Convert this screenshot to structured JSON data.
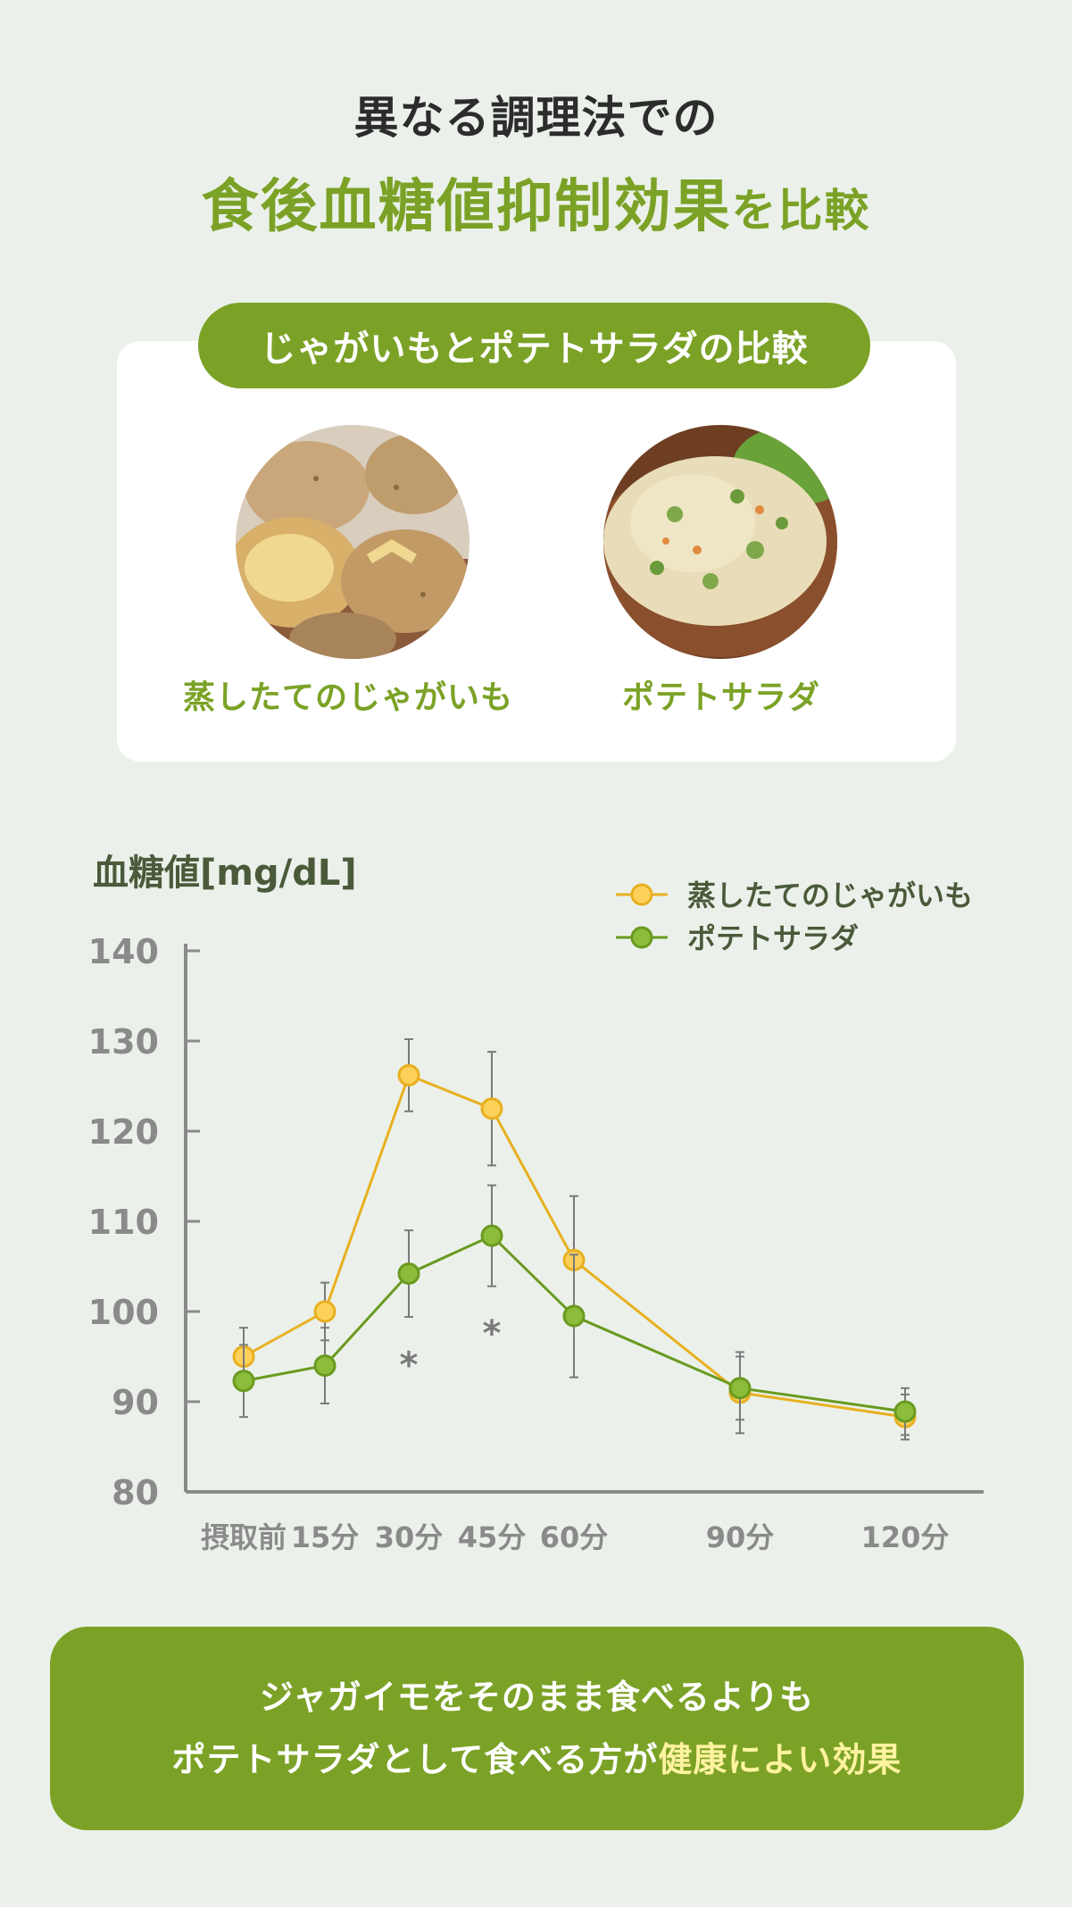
{
  "header": {
    "line1": "異なる調理法での",
    "line2_main": "食後血糖値抑制効果",
    "line2_suffix": "を比較"
  },
  "comparison": {
    "pill_label": "じゃがいもとポテトサラダの比較",
    "items": [
      {
        "label": "蒸したてのじゃがいも",
        "image": "steamed-potatoes"
      },
      {
        "label": "ポテトサラダ",
        "image": "potato-salad"
      }
    ]
  },
  "chart_data": {
    "type": "line",
    "ylabel": "血糖値[mg/dL]",
    "ylim": [
      80,
      140
    ],
    "yticks": [
      80,
      90,
      100,
      110,
      120,
      130,
      140
    ],
    "x": [
      0,
      15,
      30,
      45,
      60,
      90,
      120
    ],
    "xticklabels": [
      "摂取前",
      "15分",
      "30分",
      "45分",
      "60分",
      "90分",
      "120分"
    ],
    "legend_position": "top-right",
    "series": [
      {
        "name": "蒸したてのじゃがいも",
        "color": "#e8b020",
        "marker_fill": "#fcd15a",
        "values": [
          95,
          100,
          126.2,
          122.5,
          105.7,
          91,
          88.3
        ],
        "error": [
          3.2,
          3.2,
          4,
          6.3,
          7.1,
          4.5,
          2.5
        ]
      },
      {
        "name": "ポテトサラダ",
        "color": "#6a9a20",
        "marker_fill": "#8bbd3a",
        "values": [
          92.3,
          94,
          104.2,
          108.4,
          99.5,
          91.5,
          88.9
        ],
        "error": [
          4,
          4.2,
          4.8,
          5.6,
          6.8,
          3.5,
          2.6
        ]
      }
    ],
    "annotations": [
      {
        "x": 30,
        "y": 94.5,
        "text": "*"
      },
      {
        "x": 45,
        "y": 98,
        "text": "*"
      }
    ]
  },
  "conclusion": {
    "line1": "ジャガイモをそのまま食べるよりも",
    "line2_prefix": "ポテトサラダとして食べる方が",
    "line2_highlight": "健康によい効果"
  }
}
